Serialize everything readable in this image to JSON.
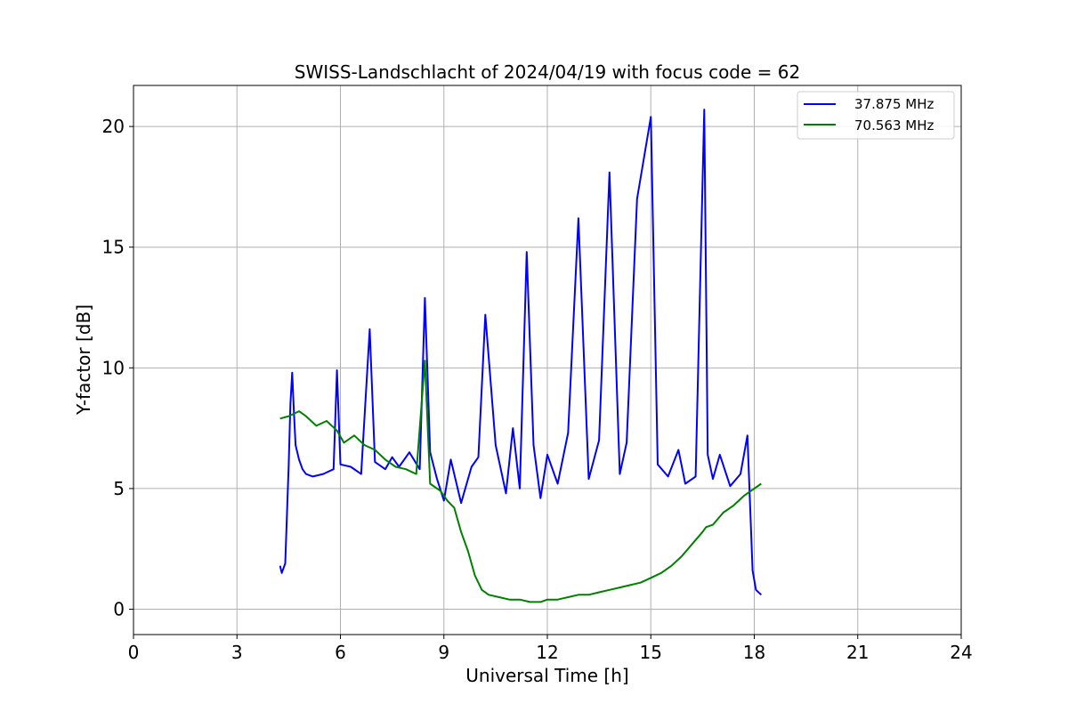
{
  "chart_data": {
    "type": "line",
    "title": "SWISS-Landschlacht of 2024/04/19 with focus code = 62",
    "xlabel": "Universal Time [h]",
    "ylabel": "Y-factor [dB]",
    "xlim": [
      0,
      24
    ],
    "ylim": [
      -1.05,
      21.7
    ],
    "xticks": [
      "0",
      "3",
      "6",
      "9",
      "12",
      "15",
      "18",
      "21",
      "24"
    ],
    "yticks": [
      "0",
      "5",
      "10",
      "15",
      "20"
    ],
    "grid": true,
    "legend_position": "top-right",
    "series": [
      {
        "name": "37.875 MHz",
        "color": "#0000ff",
        "x": [
          4.25,
          4.3,
          4.4,
          4.5,
          4.55,
          4.6,
          4.65,
          4.7,
          4.8,
          4.9,
          5.0,
          5.2,
          5.5,
          5.8,
          5.9,
          6.0,
          6.3,
          6.6,
          6.85,
          7.0,
          7.3,
          7.5,
          7.7,
          8.0,
          8.3,
          8.45,
          8.6,
          8.8,
          9.0,
          9.2,
          9.5,
          9.8,
          10.0,
          10.2,
          10.5,
          10.8,
          11.0,
          11.2,
          11.4,
          11.6,
          11.8,
          12.0,
          12.3,
          12.6,
          12.9,
          13.2,
          13.5,
          13.8,
          14.1,
          14.3,
          14.6,
          15.0,
          15.2,
          15.5,
          15.8,
          16.0,
          16.3,
          16.55,
          16.65,
          16.8,
          17.0,
          17.3,
          17.6,
          17.8,
          17.95,
          18.05,
          18.2
        ],
        "y": [
          1.8,
          1.5,
          1.9,
          6.0,
          8.5,
          9.8,
          8.2,
          6.8,
          6.2,
          5.8,
          5.6,
          5.5,
          5.6,
          5.8,
          9.9,
          6.0,
          5.9,
          5.6,
          11.6,
          6.1,
          5.8,
          6.3,
          5.9,
          6.5,
          5.8,
          12.9,
          6.5,
          5.4,
          4.5,
          6.2,
          4.4,
          5.9,
          6.3,
          12.2,
          6.8,
          4.8,
          7.5,
          5.0,
          14.8,
          6.8,
          4.6,
          6.4,
          5.2,
          7.3,
          16.2,
          5.4,
          7.0,
          18.1,
          5.6,
          6.9,
          17.0,
          20.4,
          6.0,
          5.5,
          6.6,
          5.2,
          5.5,
          20.7,
          6.4,
          5.4,
          6.4,
          5.1,
          5.6,
          7.2,
          1.6,
          0.8,
          0.6
        ]
      },
      {
        "name": "70.563 MHz",
        "color": "#008000",
        "x": [
          4.25,
          4.5,
          4.8,
          5.0,
          5.3,
          5.6,
          5.9,
          6.1,
          6.4,
          6.7,
          7.0,
          7.3,
          7.6,
          7.9,
          8.2,
          8.45,
          8.6,
          8.9,
          9.1,
          9.3,
          9.5,
          9.7,
          9.9,
          10.1,
          10.3,
          10.6,
          10.9,
          11.2,
          11.5,
          11.8,
          12.0,
          12.3,
          12.6,
          12.9,
          13.2,
          13.5,
          13.8,
          14.1,
          14.4,
          14.7,
          15.0,
          15.3,
          15.6,
          15.9,
          16.2,
          16.5,
          16.6,
          16.8,
          17.1,
          17.4,
          17.7,
          18.0,
          18.2
        ],
        "y": [
          7.9,
          8.0,
          8.2,
          8.0,
          7.6,
          7.8,
          7.4,
          6.9,
          7.2,
          6.8,
          6.6,
          6.2,
          5.9,
          5.8,
          5.6,
          10.3,
          5.2,
          4.9,
          4.5,
          4.2,
          3.2,
          2.4,
          1.4,
          0.8,
          0.6,
          0.5,
          0.4,
          0.4,
          0.3,
          0.3,
          0.4,
          0.4,
          0.5,
          0.6,
          0.6,
          0.7,
          0.8,
          0.9,
          1.0,
          1.1,
          1.3,
          1.5,
          1.8,
          2.2,
          2.7,
          3.2,
          3.4,
          3.5,
          4.0,
          4.3,
          4.7,
          5.0,
          5.2
        ]
      }
    ]
  }
}
